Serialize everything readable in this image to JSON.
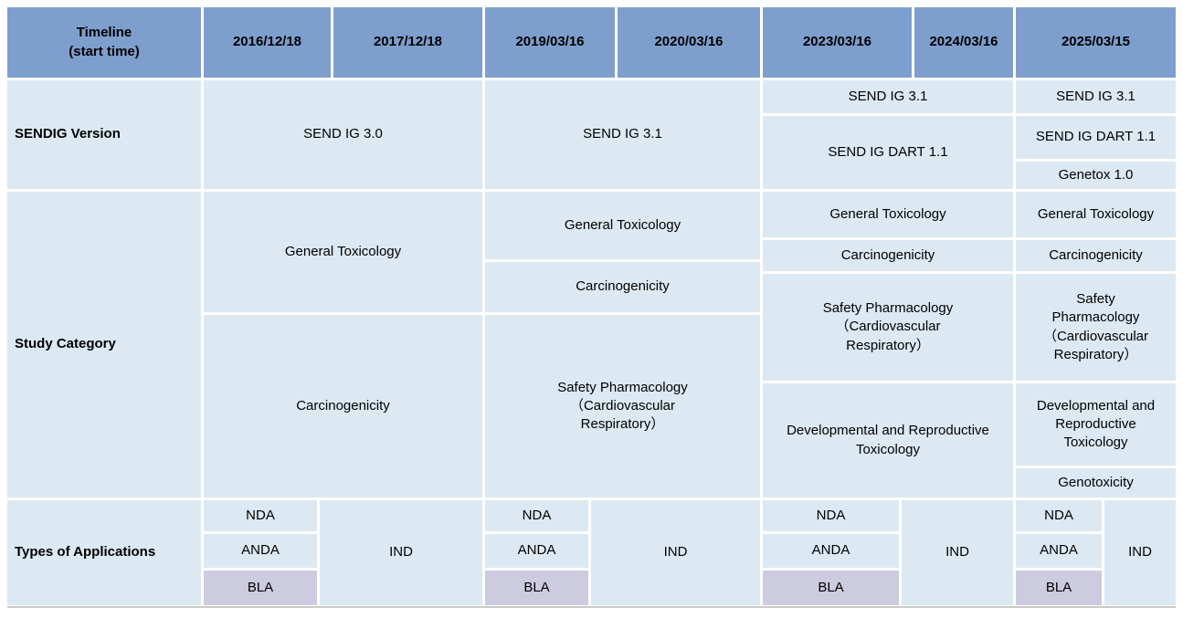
{
  "header": {
    "timeline_label": "Timeline\n(start time)",
    "dates": [
      "2016/12/18",
      "2017/12/18",
      "2019/03/16",
      "2020/03/16",
      "2023/03/16",
      "2024/03/16",
      "2025/03/15"
    ]
  },
  "sendig": {
    "label": "SENDIG Version",
    "v2016_2017": "SEND IG 3.0",
    "v2019_2020": "SEND IG 3.1",
    "v2023_2024": [
      "SEND IG 3.1",
      "SEND IG DART 1.1"
    ],
    "v2025": [
      "SEND IG 3.1",
      "SEND IG DART 1.1",
      "Genetox 1.0"
    ]
  },
  "study": {
    "label": "Study Category",
    "z2016_2017": [
      "General Toxicology",
      "Carcinogenicity"
    ],
    "z2019_2020": [
      "General Toxicology",
      "Carcinogenicity",
      "Safety Pharmacology\n（Cardiovascular\nRespiratory）"
    ],
    "z2023_2024": [
      "General Toxicology",
      "Carcinogenicity",
      "Safety Pharmacology\n（Cardiovascular\nRespiratory）",
      "Developmental and Reproductive\nToxicology"
    ],
    "z2025": [
      "General Toxicology",
      "Carcinogenicity",
      "Safety\nPharmacology\n（Cardiovascular\nRespiratory）",
      "Developmental and\nReproductive\nToxicology",
      "Genotoxicity"
    ]
  },
  "apps": {
    "label": "Types of Applications",
    "nda": "NDA",
    "anda": "ANDA",
    "bla": "BLA",
    "ind": "IND"
  },
  "colors": {
    "header_bg": "#7e9fcd",
    "cell_bg": "#dce9f2",
    "bla_bg": "#cccbdf",
    "gridline": "#ffffff",
    "text": "#000000"
  }
}
